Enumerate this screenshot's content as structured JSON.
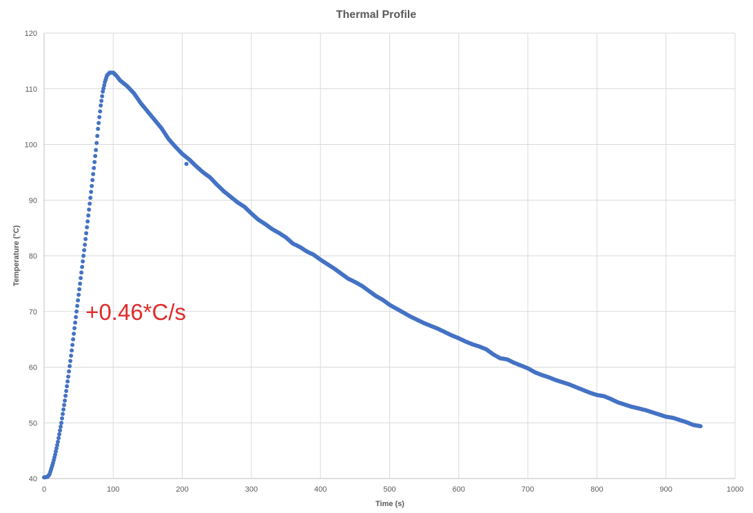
{
  "chart_data": {
    "type": "scatter",
    "title": "Thermal Profile",
    "xlabel": "Time (s)",
    "ylabel": "Temperature (°C)",
    "xlim": [
      0,
      1000
    ],
    "ylim": [
      40,
      120
    ],
    "xticks": [
      0,
      100,
      200,
      300,
      400,
      500,
      600,
      700,
      800,
      900,
      1000
    ],
    "yticks": [
      40,
      50,
      60,
      70,
      80,
      90,
      100,
      110,
      120
    ],
    "grid": true,
    "legend": "none",
    "series_color": "#4472C4",
    "annotation": {
      "text": "+0.46*C/s",
      "x": 60,
      "y": 70,
      "color": "#E02B2B"
    },
    "outliers": [
      [
        206,
        96.5
      ]
    ],
    "series": [
      {
        "points": [
          [
            0,
            40.2
          ],
          [
            5,
            40.3
          ],
          [
            8,
            40.8
          ],
          [
            10,
            41.6
          ],
          [
            13,
            42.8
          ],
          [
            16,
            44.3
          ],
          [
            20,
            46.6
          ],
          [
            25,
            50.0
          ],
          [
            30,
            54.0
          ],
          [
            35,
            58.3
          ],
          [
            40,
            63.0
          ],
          [
            45,
            68.0
          ],
          [
            50,
            73.0
          ],
          [
            55,
            78.0
          ],
          [
            60,
            83.0
          ],
          [
            65,
            88.3
          ],
          [
            70,
            93.6
          ],
          [
            75,
            99.0
          ],
          [
            78,
            102.8
          ],
          [
            82,
            107.0
          ],
          [
            85,
            109.5
          ],
          [
            88,
            111.2
          ],
          [
            91,
            112.4
          ],
          [
            95,
            112.9
          ],
          [
            100,
            112.9
          ],
          [
            105,
            112.3
          ],
          [
            110,
            111.5
          ],
          [
            120,
            110.5
          ],
          [
            130,
            109.2
          ],
          [
            140,
            107.4
          ],
          [
            150,
            105.9
          ],
          [
            160,
            104.4
          ],
          [
            170,
            102.9
          ],
          [
            180,
            101.0
          ],
          [
            190,
            99.6
          ],
          [
            200,
            98.3
          ],
          [
            210,
            97.3
          ],
          [
            220,
            96.1
          ],
          [
            230,
            95.0
          ],
          [
            240,
            94.1
          ],
          [
            250,
            92.8
          ],
          [
            260,
            91.6
          ],
          [
            270,
            90.6
          ],
          [
            280,
            89.6
          ],
          [
            290,
            88.8
          ],
          [
            300,
            87.6
          ],
          [
            310,
            86.5
          ],
          [
            320,
            85.7
          ],
          [
            330,
            84.8
          ],
          [
            340,
            84.1
          ],
          [
            350,
            83.3
          ],
          [
            360,
            82.2
          ],
          [
            370,
            81.6
          ],
          [
            380,
            80.8
          ],
          [
            390,
            80.2
          ],
          [
            400,
            79.3
          ],
          [
            410,
            78.5
          ],
          [
            420,
            77.7
          ],
          [
            430,
            76.8
          ],
          [
            440,
            75.9
          ],
          [
            450,
            75.3
          ],
          [
            460,
            74.6
          ],
          [
            470,
            73.7
          ],
          [
            480,
            72.8
          ],
          [
            490,
            72.1
          ],
          [
            500,
            71.2
          ],
          [
            510,
            70.5
          ],
          [
            520,
            69.8
          ],
          [
            530,
            69.1
          ],
          [
            540,
            68.5
          ],
          [
            550,
            67.9
          ],
          [
            560,
            67.4
          ],
          [
            570,
            66.9
          ],
          [
            580,
            66.3
          ],
          [
            590,
            65.7
          ],
          [
            600,
            65.2
          ],
          [
            610,
            64.6
          ],
          [
            620,
            64.1
          ],
          [
            630,
            63.7
          ],
          [
            640,
            63.2
          ],
          [
            650,
            62.3
          ],
          [
            660,
            61.6
          ],
          [
            670,
            61.4
          ],
          [
            680,
            60.8
          ],
          [
            690,
            60.3
          ],
          [
            700,
            59.8
          ],
          [
            710,
            59.1
          ],
          [
            720,
            58.6
          ],
          [
            730,
            58.2
          ],
          [
            740,
            57.7
          ],
          [
            750,
            57.3
          ],
          [
            760,
            56.9
          ],
          [
            770,
            56.4
          ],
          [
            780,
            55.9
          ],
          [
            790,
            55.4
          ],
          [
            800,
            55.0
          ],
          [
            810,
            54.8
          ],
          [
            820,
            54.3
          ],
          [
            830,
            53.7
          ],
          [
            840,
            53.3
          ],
          [
            850,
            52.9
          ],
          [
            860,
            52.6
          ],
          [
            870,
            52.3
          ],
          [
            880,
            51.9
          ],
          [
            890,
            51.5
          ],
          [
            900,
            51.1
          ],
          [
            910,
            50.9
          ],
          [
            920,
            50.5
          ],
          [
            930,
            50.1
          ],
          [
            940,
            49.6
          ],
          [
            950,
            49.4
          ]
        ]
      }
    ]
  }
}
